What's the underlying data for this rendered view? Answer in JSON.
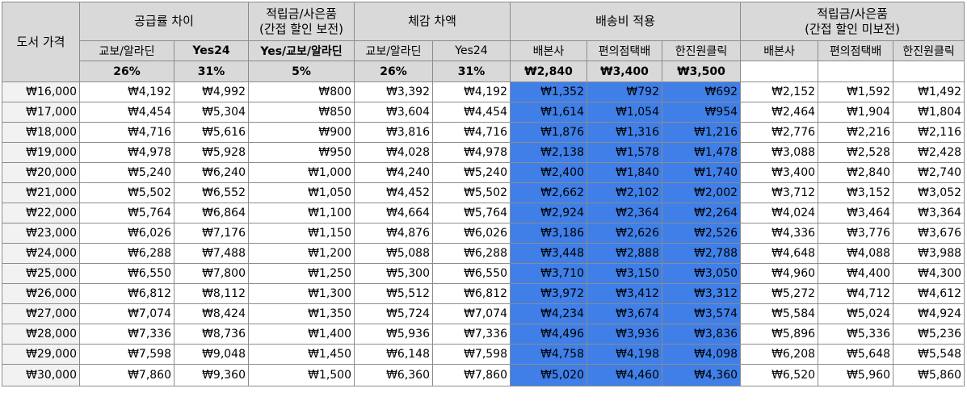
{
  "header": {
    "book_price": "도서 가격",
    "supply_diff": "공급률 차이",
    "points_compensated": "적립금/사은품\n(간접 할인 보전)",
    "actual_diff": "체감 차액",
    "shipping_applied": "배송비 적용",
    "points_not_compensated": "적립금/사은품\n(간접 할인 미보전)"
  },
  "subheader": [
    "교보/알라딘",
    "Yes24",
    "Yes/교보/알라딘",
    "교보/알라딘",
    "Yes24",
    "배본사",
    "편의점택배",
    "한진원클릭",
    "배본사",
    "편의점택배",
    "한진원클릭"
  ],
  "rates": [
    "26%",
    "31%",
    "5%",
    "26%",
    "31%",
    "₩2,840",
    "₩3,400",
    "₩3,500",
    "",
    "",
    ""
  ],
  "rows": [
    [
      "₩16,000",
      "₩4,192",
      "₩4,992",
      "₩800",
      "₩3,392",
      "₩4,192",
      "₩1,352",
      "₩792",
      "₩692",
      "₩2,152",
      "₩1,592",
      "₩1,492"
    ],
    [
      "₩17,000",
      "₩4,454",
      "₩5,304",
      "₩850",
      "₩3,604",
      "₩4,454",
      "₩1,614",
      "₩1,054",
      "₩954",
      "₩2,464",
      "₩1,904",
      "₩1,804"
    ],
    [
      "₩18,000",
      "₩4,716",
      "₩5,616",
      "₩900",
      "₩3,816",
      "₩4,716",
      "₩1,876",
      "₩1,316",
      "₩1,216",
      "₩2,776",
      "₩2,216",
      "₩2,116"
    ],
    [
      "₩19,000",
      "₩4,978",
      "₩5,928",
      "₩950",
      "₩4,028",
      "₩4,978",
      "₩2,138",
      "₩1,578",
      "₩1,478",
      "₩3,088",
      "₩2,528",
      "₩2,428"
    ],
    [
      "₩20,000",
      "₩5,240",
      "₩6,240",
      "₩1,000",
      "₩4,240",
      "₩5,240",
      "₩2,400",
      "₩1,840",
      "₩1,740",
      "₩3,400",
      "₩2,840",
      "₩2,740"
    ],
    [
      "₩21,000",
      "₩5,502",
      "₩6,552",
      "₩1,050",
      "₩4,452",
      "₩5,502",
      "₩2,662",
      "₩2,102",
      "₩2,002",
      "₩3,712",
      "₩3,152",
      "₩3,052"
    ],
    [
      "₩22,000",
      "₩5,764",
      "₩6,864",
      "₩1,100",
      "₩4,664",
      "₩5,764",
      "₩2,924",
      "₩2,364",
      "₩2,264",
      "₩4,024",
      "₩3,464",
      "₩3,364"
    ],
    [
      "₩23,000",
      "₩6,026",
      "₩7,176",
      "₩1,150",
      "₩4,876",
      "₩6,026",
      "₩3,186",
      "₩2,626",
      "₩2,526",
      "₩4,336",
      "₩3,776",
      "₩3,676"
    ],
    [
      "₩24,000",
      "₩6,288",
      "₩7,488",
      "₩1,200",
      "₩5,088",
      "₩6,288",
      "₩3,448",
      "₩2,888",
      "₩2,788",
      "₩4,648",
      "₩4,088",
      "₩3,988"
    ],
    [
      "₩25,000",
      "₩6,550",
      "₩7,800",
      "₩1,250",
      "₩5,300",
      "₩6,550",
      "₩3,710",
      "₩3,150",
      "₩3,050",
      "₩4,960",
      "₩4,400",
      "₩4,300"
    ],
    [
      "₩26,000",
      "₩6,812",
      "₩8,112",
      "₩1,300",
      "₩5,512",
      "₩6,812",
      "₩3,972",
      "₩3,412",
      "₩3,312",
      "₩5,272",
      "₩4,712",
      "₩4,612"
    ],
    [
      "₩27,000",
      "₩7,074",
      "₩8,424",
      "₩1,350",
      "₩5,724",
      "₩7,074",
      "₩4,234",
      "₩3,674",
      "₩3,574",
      "₩5,584",
      "₩5,024",
      "₩4,924"
    ],
    [
      "₩28,000",
      "₩7,336",
      "₩8,736",
      "₩1,400",
      "₩5,936",
      "₩7,336",
      "₩4,496",
      "₩3,936",
      "₩3,836",
      "₩5,896",
      "₩5,336",
      "₩5,236"
    ],
    [
      "₩29,000",
      "₩7,598",
      "₩9,048",
      "₩1,450",
      "₩6,148",
      "₩7,598",
      "₩4,758",
      "₩4,198",
      "₩4,098",
      "₩6,208",
      "₩5,648",
      "₩5,548"
    ],
    [
      "₩30,000",
      "₩7,860",
      "₩9,360",
      "₩1,500",
      "₩6,360",
      "₩7,860",
      "₩5,020",
      "₩4,460",
      "₩4,360",
      "₩6,520",
      "₩5,960",
      "₩5,860"
    ]
  ],
  "colors": {
    "header_bg": "#d9d9d9",
    "price_bg": "#f2f2f2",
    "shipping_bg": "#3f7fe7",
    "border": "#8c8c8c"
  }
}
